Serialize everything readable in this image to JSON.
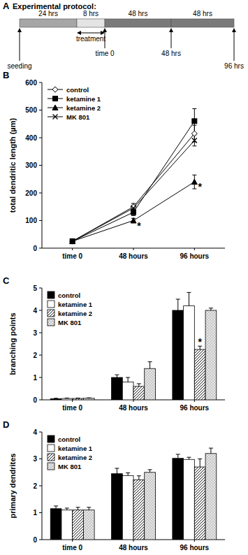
{
  "protocol": {
    "panel": "A",
    "title": "Experimental protocol:",
    "segments": [
      {
        "label": "24 hrs",
        "color": "#a6a6a6"
      },
      {
        "label": "8 hrs",
        "color": "#e4e4e4"
      },
      {
        "label": "48 hrs",
        "color": "#7a7a7a"
      },
      {
        "label": "48 hrs",
        "color": "#7a7a7a"
      }
    ],
    "treatment": {
      "label": "treatment",
      "segment": 1
    },
    "events": [
      {
        "label": "seeding",
        "at": 0
      },
      {
        "label": "time 0",
        "at": 2
      },
      {
        "label": "48 hrs",
        "at": 3
      },
      {
        "label": "96 hrs",
        "at": 4
      }
    ]
  },
  "chart_data": [
    {
      "type": "line",
      "title": "B",
      "y_label": "total dendritic length (µm)",
      "categories": [
        "time 0",
        "48 hours",
        "96 hours"
      ],
      "ylim": [
        0,
        600
      ],
      "yticks": [
        0,
        100,
        200,
        300,
        400,
        500,
        600
      ],
      "legend": "top-left",
      "series": [
        {
          "name": "control",
          "color": "#000000",
          "marker": "open_diamond",
          "values": [
            25,
            150,
            415
          ],
          "errors": [
            3,
            12,
            30
          ]
        },
        {
          "name": "ketamine 1",
          "color": "#000000",
          "marker": "square",
          "values": [
            25,
            130,
            460
          ],
          "errors": [
            3,
            12,
            45
          ]
        },
        {
          "name": "ketamine 2",
          "color": "#000000",
          "marker": "triangle",
          "values": [
            25,
            100,
            240
          ],
          "errors": [
            3,
            8,
            25
          ]
        },
        {
          "name": "MK 801",
          "color": "#000000",
          "marker": "cross",
          "values": [
            25,
            145,
            390
          ],
          "errors": [
            3,
            10,
            20
          ]
        }
      ],
      "annotations": [
        {
          "text": "*",
          "series": 2,
          "index": 1
        },
        {
          "text": "*",
          "series": 2,
          "index": 2
        }
      ]
    },
    {
      "type": "bar",
      "title": "C",
      "y_label": "branching points",
      "categories": [
        "time 0",
        "48 hours",
        "96 hours"
      ],
      "ylim": [
        0,
        5
      ],
      "yticks": [
        0,
        1,
        2,
        3,
        4,
        5
      ],
      "legend": "top-left",
      "series": [
        {
          "name": "control",
          "color": "#000000",
          "marker": "solid",
          "values": [
            0.05,
            1.0,
            4.0
          ],
          "errors": [
            0.02,
            0.12,
            0.5
          ]
        },
        {
          "name": "ketamine 1",
          "color": "#ffffff",
          "marker": "solid",
          "values": [
            0.06,
            0.8,
            4.2
          ],
          "errors": [
            0.02,
            0.2,
            0.6
          ]
        },
        {
          "name": "ketamine 2",
          "color": "#ffffff",
          "marker": "hatch",
          "values": [
            0.06,
            0.6,
            2.25
          ],
          "errors": [
            0.02,
            0.12,
            0.15
          ]
        },
        {
          "name": "MK 801",
          "color": "#e6e6e6",
          "marker": "dots",
          "values": [
            0.07,
            1.4,
            4.0
          ],
          "errors": [
            0.02,
            0.3,
            0.1
          ]
        }
      ],
      "annotations": [
        {
          "text": "*",
          "series": 2,
          "index": 2
        }
      ]
    },
    {
      "type": "bar",
      "title": "D",
      "y_label": "primary dendrites",
      "categories": [
        "time 0",
        "48 hours",
        "96 hours"
      ],
      "ylim": [
        0,
        4
      ],
      "yticks": [
        0,
        1,
        2,
        3,
        4
      ],
      "legend": "top-left",
      "series": [
        {
          "name": "control",
          "color": "#000000",
          "marker": "solid",
          "values": [
            1.15,
            2.45,
            3.02
          ],
          "errors": [
            0.1,
            0.2,
            0.15
          ]
        },
        {
          "name": "ketamine 1",
          "color": "#ffffff",
          "marker": "solid",
          "values": [
            1.1,
            2.38,
            2.98
          ],
          "errors": [
            0.07,
            0.1,
            0.08
          ]
        },
        {
          "name": "ketamine 2",
          "color": "#ffffff",
          "marker": "hatch",
          "values": [
            1.1,
            2.22,
            2.7
          ],
          "errors": [
            0.1,
            0.15,
            0.3
          ]
        },
        {
          "name": "MK 801",
          "color": "#e6e6e6",
          "marker": "dots",
          "values": [
            1.1,
            2.5,
            3.2
          ],
          "errors": [
            0.1,
            0.1,
            0.2
          ]
        }
      ]
    }
  ]
}
